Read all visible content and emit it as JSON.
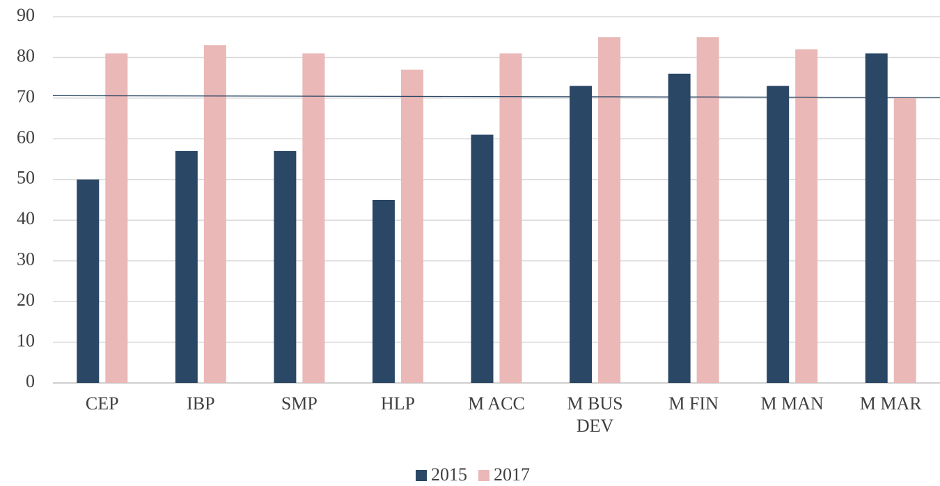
{
  "chart_data": {
    "type": "bar",
    "categories": [
      "CEP",
      "IBP",
      "SMP",
      "HLP",
      "M ACC",
      "M BUS DEV",
      "M FIN",
      "M MAN",
      "M MAR"
    ],
    "series": [
      {
        "name": "2015",
        "color": "#2a4765",
        "values": [
          50,
          57,
          57,
          45,
          61,
          73,
          76,
          73,
          81
        ]
      },
      {
        "name": "2017",
        "color": "#eab8b7",
        "values": [
          81,
          83,
          81,
          77,
          81,
          85,
          85,
          82,
          70
        ]
      }
    ],
    "reference_line": {
      "color": "#2a4765",
      "values": [
        70.6,
        70.15
      ]
    },
    "ylim": [
      0,
      90
    ],
    "yticks": [
      0,
      10,
      20,
      30,
      40,
      50,
      60,
      70,
      80,
      90
    ],
    "grid": true,
    "legend": "bottom"
  }
}
